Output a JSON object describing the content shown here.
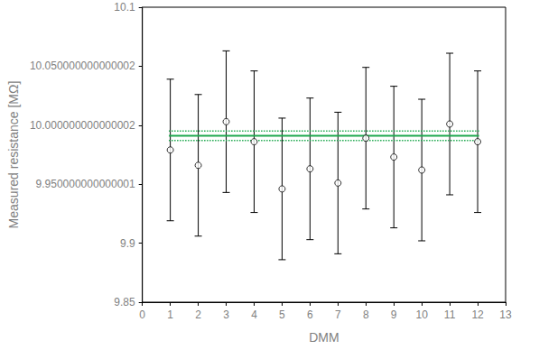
{
  "chart_data": {
    "type": "scatter",
    "x_label": "DMM",
    "y_label": "Measured resistance [MΩ]",
    "xlim": [
      0,
      13
    ],
    "xticks": [
      0,
      1,
      2,
      3,
      4,
      5,
      6,
      7,
      8,
      9,
      10,
      11,
      12,
      13
    ],
    "ylim": [
      9.85,
      10.1
    ],
    "yticks": [
      9.85,
      9.9,
      9.95,
      10,
      10.05,
      10.1
    ],
    "grid": false,
    "series": [
      {
        "type": "scatter",
        "marker": "open_circle",
        "color": "#000000",
        "x": [
          1,
          2,
          3,
          4,
          5,
          6,
          7,
          8,
          9,
          10,
          11,
          12
        ],
        "values": [
          9.979,
          9.966,
          10.003,
          9.986,
          9.946,
          9.963,
          9.951,
          9.989,
          9.973,
          9.962,
          10.001,
          9.986
        ],
        "errors": [
          0.06,
          0.06,
          0.06,
          0.06,
          0.06,
          0.06,
          0.06,
          0.06,
          0.06,
          0.06,
          0.06,
          0.06
        ]
      },
      {
        "type": "line",
        "line_style": "solid",
        "color": "#1fa84f",
        "x": [
          0.95,
          12.05
        ],
        "values": [
          9.991,
          9.991
        ]
      },
      {
        "type": "line",
        "line_style": "dotted",
        "color": "#1fa84f",
        "x": [
          0.95,
          12.05
        ],
        "values": [
          9.995,
          9.995
        ]
      },
      {
        "type": "line",
        "line_style": "dotted",
        "color": "#1fa84f",
        "x": [
          0.95,
          12.05
        ],
        "values": [
          9.987,
          9.987
        ]
      }
    ]
  }
}
